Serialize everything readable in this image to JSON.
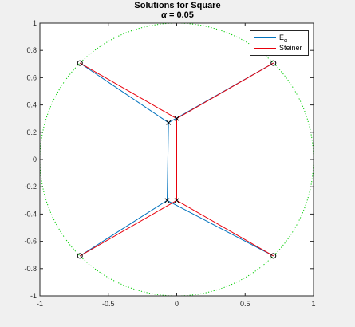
{
  "chart_data": {
    "type": "line",
    "title": "Solutions for Square",
    "subtitle_symbol": "α",
    "subtitle_rest": " = 0.05",
    "xlim": [
      -1,
      1
    ],
    "ylim": [
      -1,
      1
    ],
    "xticks": [
      -1,
      -0.5,
      0,
      0.5,
      1
    ],
    "xtick_labels": [
      "-1",
      "-0.5",
      "0",
      "0.5",
      "1"
    ],
    "yticks": [
      -1,
      -0.8,
      -0.6,
      -0.4,
      -0.2,
      0,
      0.2,
      0.4,
      0.6,
      0.8,
      1
    ],
    "ytick_labels": [
      "-1",
      "-0.8",
      "-0.6",
      "-0.4",
      "-0.2",
      "0",
      "0.2",
      "0.4",
      "0.6",
      "0.8",
      "1"
    ],
    "grid": false,
    "legend_position": "top-right",
    "terminals": [
      [
        -0.707,
        0.707
      ],
      [
        0.707,
        0.707
      ],
      [
        -0.707,
        -0.707
      ],
      [
        0.707,
        -0.707
      ]
    ],
    "circle": {
      "center": [
        0,
        0
      ],
      "radius": 1,
      "color": "#00cc00",
      "style": "dotted"
    },
    "series": [
      {
        "name_main": "E",
        "name_sub": "α",
        "color": "#0072BD",
        "steiner_points": [
          [
            -0.06,
            0.27
          ],
          [
            -0.07,
            -0.3
          ]
        ],
        "segments": [
          [
            [
              -0.707,
              0.707
            ],
            [
              -0.06,
              0.27
            ]
          ],
          [
            [
              0.707,
              0.707
            ],
            [
              -0.06,
              0.27
            ]
          ],
          [
            [
              -0.06,
              0.27
            ],
            [
              -0.07,
              -0.3
            ]
          ],
          [
            [
              -0.707,
              -0.707
            ],
            [
              -0.07,
              -0.3
            ]
          ],
          [
            [
              0.707,
              -0.707
            ],
            [
              -0.07,
              -0.3
            ]
          ]
        ]
      },
      {
        "name_main": "Steiner",
        "name_sub": "",
        "color": "#E8000B",
        "steiner_points": [
          [
            0.0,
            0.3
          ],
          [
            0.0,
            -0.3
          ]
        ],
        "segments": [
          [
            [
              -0.707,
              0.707
            ],
            [
              0.0,
              0.3
            ]
          ],
          [
            [
              0.707,
              0.707
            ],
            [
              0.0,
              0.3
            ]
          ],
          [
            [
              0.0,
              0.3
            ],
            [
              0.0,
              -0.3
            ]
          ],
          [
            [
              -0.707,
              -0.707
            ],
            [
              0.0,
              -0.3
            ]
          ],
          [
            [
              0.707,
              -0.707
            ],
            [
              0.0,
              -0.3
            ]
          ]
        ]
      }
    ]
  }
}
